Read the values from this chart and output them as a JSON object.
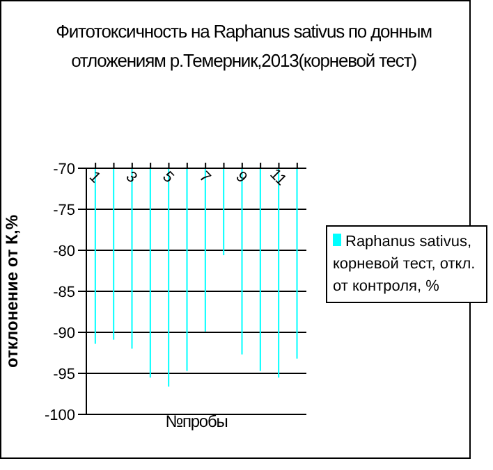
{
  "chart_data": {
    "type": "bar",
    "title": "Фитотоксичность на Raphanus sativus по донным отложениям р.Темерник,2013(корневой тест)",
    "xlabel": "№пробы",
    "ylabel": "отклонение от К,%",
    "categories": [
      "1",
      null,
      "3",
      null,
      "5",
      null,
      "7",
      null,
      "9",
      null,
      "11",
      null
    ],
    "series": [
      {
        "name": "Raphanus sativus, корневой тест, откл. от контроля, %",
        "color": "#00ffff",
        "values": [
          -91.4,
          -90.9,
          -92.0,
          -95.5,
          -96.6,
          -94.7,
          -89.9,
          -80.6,
          -92.7,
          -94.7,
          -95.5,
          -93.2
        ]
      }
    ],
    "ylim": [
      -100,
      -70
    ],
    "yticks": [
      -100,
      -95,
      -90,
      -85,
      -80,
      -75,
      -70
    ],
    "grid": "y",
    "legend": "right"
  }
}
